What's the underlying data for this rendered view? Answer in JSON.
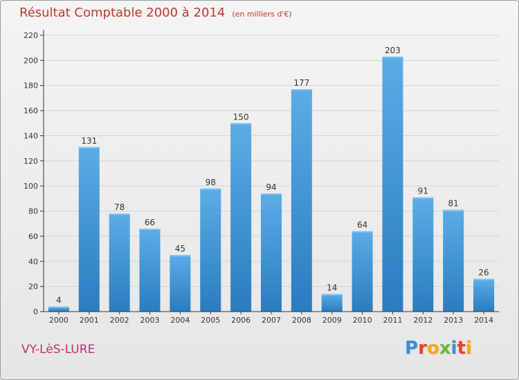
{
  "header": {
    "title": "Résultat Comptable 2000 à 2014",
    "subtitle": "(en milliers d'€)"
  },
  "footer": {
    "commune": "VY-LèS-LURE"
  },
  "logo": {
    "text": "Proxiti",
    "letters": [
      {
        "char": "P",
        "color": "#3a8fd6"
      },
      {
        "char": "r",
        "color": "#e5452b"
      },
      {
        "char": "o",
        "color": "#f2a81d"
      },
      {
        "char": "x",
        "color": "#6fb83a"
      },
      {
        "char": "i",
        "color": "#3a8fd6"
      },
      {
        "char": "t",
        "color": "#e5452b"
      },
      {
        "char": "i",
        "color": "#f2a81d"
      }
    ]
  },
  "colors": {
    "bar_light": "#5aade6",
    "bar_dark": "#2a7cbf",
    "axis": "#333333",
    "grid": "#d4d4d4",
    "title": "#c0392b"
  },
  "chart_data": {
    "type": "bar",
    "categories": [
      "2000",
      "2001",
      "2002",
      "2003",
      "2004",
      "2005",
      "2006",
      "2007",
      "2008",
      "2009",
      "2010",
      "2011",
      "2012",
      "2013",
      "2014"
    ],
    "values": [
      4,
      131,
      78,
      66,
      45,
      98,
      150,
      94,
      177,
      14,
      64,
      203,
      91,
      81,
      26
    ],
    "yticks": [
      0,
      20,
      40,
      60,
      80,
      100,
      120,
      140,
      160,
      180,
      200,
      220
    ],
    "ylim": [
      0,
      220
    ],
    "grid": true,
    "data_labels": true
  }
}
